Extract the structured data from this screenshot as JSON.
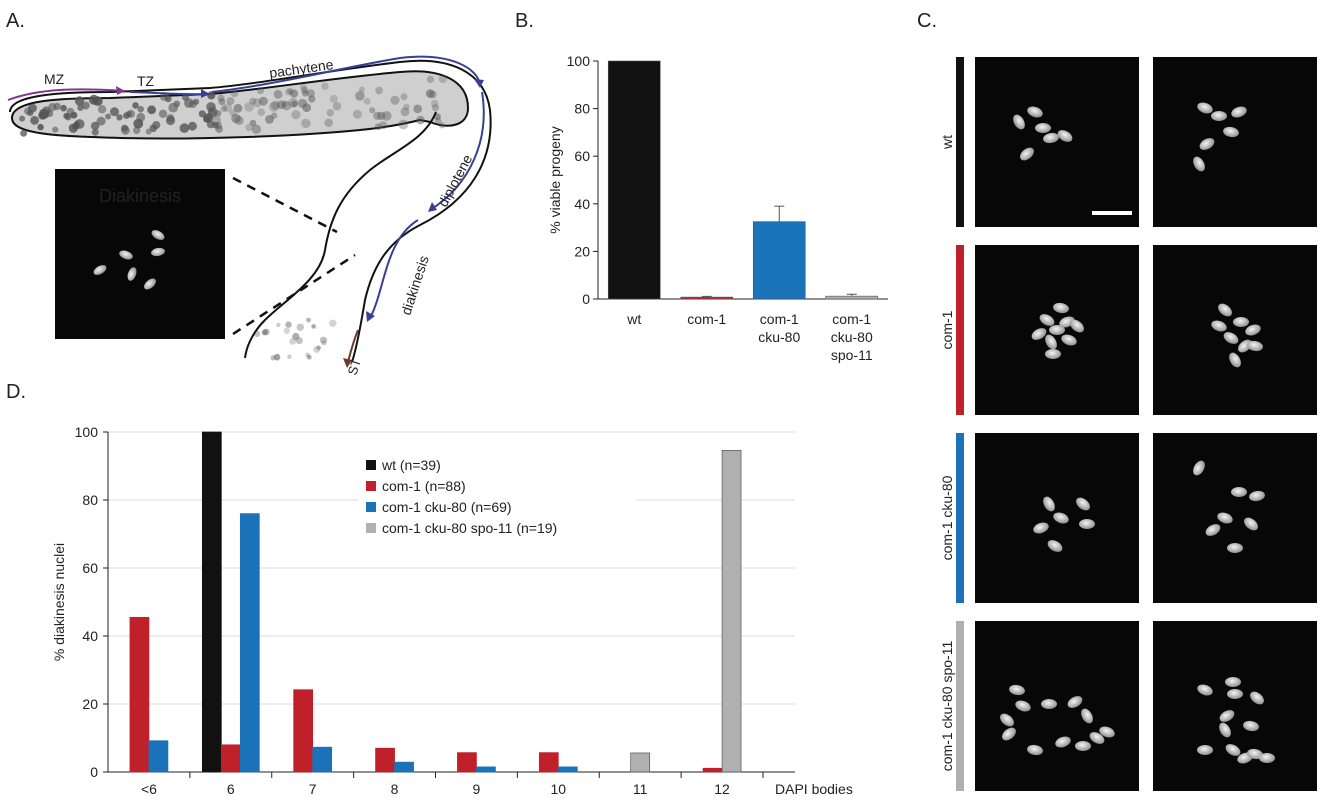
{
  "panels": {
    "a": "A.",
    "b": "B.",
    "c": "C.",
    "d": "D."
  },
  "panel_a": {
    "stages": [
      "MZ",
      "TZ",
      "pachytene",
      "diplotene",
      "diakinesis",
      "ST"
    ],
    "inset_title": "Diakinesis",
    "colors": {
      "mz": "#7b3a8c",
      "stages": "#3a3f96",
      "st": "#6b3a2a"
    }
  },
  "panel_c": {
    "row_labels": [
      "wt",
      "com-1",
      "com-1  cku-80",
      "com-1  cku-80 spo-11"
    ],
    "row_colors": [
      "#111111",
      "#c0202a",
      "#1a72b8",
      "#b0b0b0"
    ]
  },
  "chart_data": [
    {
      "type": "bar",
      "categories": [
        [
          "wt"
        ],
        [
          "com-1"
        ],
        [
          "com-1",
          "cku-80"
        ],
        [
          "com-1",
          "cku-80",
          "spo-11"
        ]
      ],
      "values": [
        100,
        0.8,
        32.5,
        1.2
      ],
      "errors": [
        0,
        0.3,
        6.5,
        0.8
      ],
      "colors": [
        "#111111",
        "#c0202a",
        "#1a72b8",
        "#b0b0b0"
      ],
      "ylabel": "% viable progeny",
      "ylim": [
        0,
        100
      ],
      "yticks": [
        0,
        20,
        40,
        60,
        80,
        100
      ],
      "grid": false
    },
    {
      "type": "bar",
      "categories": [
        "<6",
        "6",
        "7",
        "8",
        "9",
        "10",
        "11",
        "12"
      ],
      "xlabel": "DAPI bodies",
      "ylabel": "% diakinesis nuclei",
      "ylim": [
        0,
        100
      ],
      "yticks": [
        0,
        20,
        40,
        60,
        80,
        100
      ],
      "grid": true,
      "legend_position": "top-center",
      "series": [
        {
          "name": "wt  (n=39)",
          "color": "#111111",
          "values": [
            0,
            100,
            0,
            0,
            0,
            0,
            0,
            0
          ]
        },
        {
          "name": "com-1  (n=88)",
          "color": "#c0202a",
          "values": [
            45.5,
            8,
            24.2,
            7,
            5.7,
            5.7,
            0,
            1.1
          ]
        },
        {
          "name": "com-1 cku-80  (n=69)",
          "color": "#1a72b8",
          "values": [
            9.2,
            76,
            7.3,
            2.9,
            1.5,
            1.5,
            0,
            0
          ]
        },
        {
          "name": "com-1 cku-80 spo-11  (n=19)",
          "color": "#b0b0b0",
          "values": [
            0,
            0,
            0,
            0,
            0,
            0,
            5.6,
            94.6
          ]
        }
      ]
    }
  ]
}
